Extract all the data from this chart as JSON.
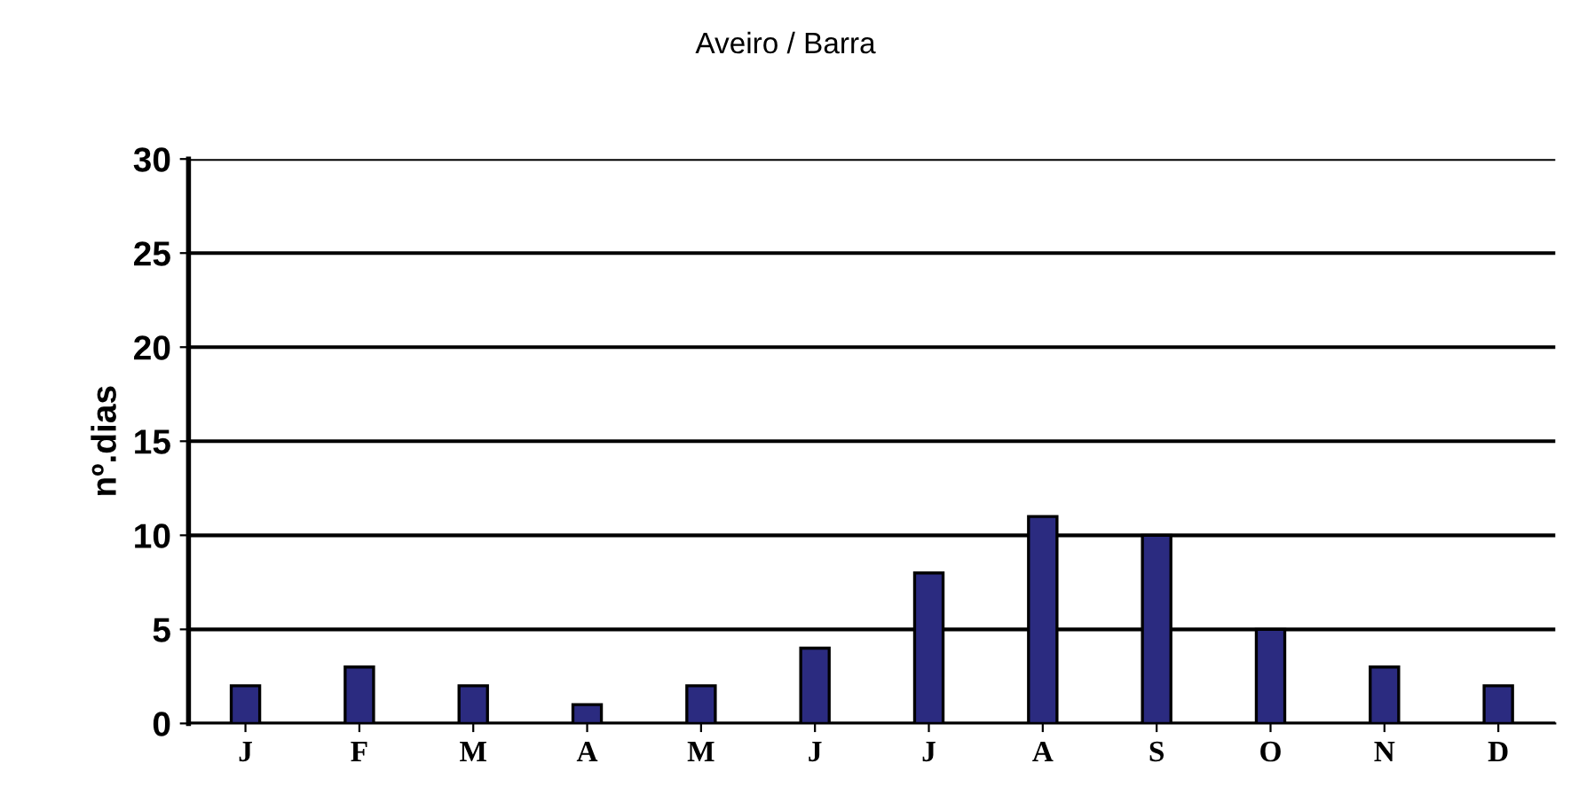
{
  "chart_data": {
    "type": "bar",
    "title": "Aveiro / Barra",
    "ylabel": "nº.dias",
    "categories": [
      "J",
      "F",
      "M",
      "A",
      "M",
      "J",
      "J",
      "A",
      "S",
      "O",
      "N",
      "D"
    ],
    "values": [
      2,
      3,
      2,
      1,
      2,
      4,
      8,
      11,
      10,
      5,
      3,
      2
    ],
    "color": "#2b2b80",
    "ylim": [
      0,
      30
    ],
    "yticks": [
      0,
      5,
      10,
      15,
      20,
      25,
      30
    ],
    "grid": "y",
    "legend": false
  }
}
